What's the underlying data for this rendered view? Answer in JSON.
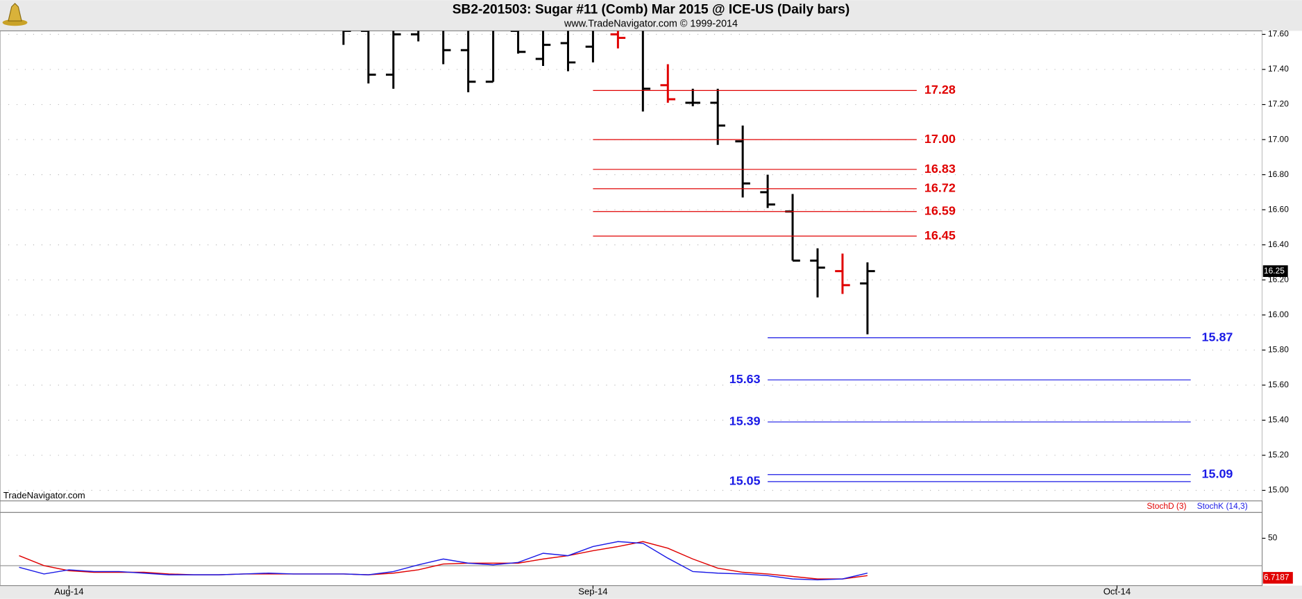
{
  "header": {
    "title": "SB2-201503:  Sugar #11 (Comb) Mar 2015 @ ICE-US  (Daily bars)",
    "subtitle": "www.TradeNavigator.com © 1999-2014"
  },
  "watermark": "TradeNavigator.com",
  "chart_data": [
    {
      "type": "ohlc",
      "categories": [
        null,
        null,
        "Aug-14",
        null,
        null,
        null,
        null,
        null,
        null,
        null,
        null,
        null,
        null,
        null,
        null,
        null,
        null,
        null,
        null,
        null,
        null,
        null,
        null,
        "Sep-14",
        null,
        null,
        null,
        null,
        null,
        null,
        null,
        null,
        null,
        null,
        null,
        null,
        null,
        null,
        null,
        null,
        null,
        null,
        null,
        null,
        "Oct-14",
        null,
        null,
        null,
        null,
        null
      ],
      "open": [
        null,
        null,
        null,
        null,
        null,
        null,
        null,
        null,
        null,
        null,
        null,
        null,
        null,
        17.66,
        17.62,
        17.37,
        17.6,
        17.64,
        17.51,
        17.33,
        17.62,
        17.46,
        17.55,
        17.53,
        17.6,
        17.64,
        17.31,
        17.21,
        17.21,
        16.99,
        16.7,
        16.59,
        16.31,
        16.25,
        16.18,
        null,
        null,
        null,
        null,
        null,
        null,
        null,
        null,
        null,
        null,
        null,
        null,
        null,
        null,
        null
      ],
      "high": [
        null,
        null,
        null,
        null,
        null,
        null,
        null,
        null,
        null,
        null,
        null,
        null,
        null,
        17.7,
        17.7,
        17.68,
        17.66,
        17.68,
        17.65,
        17.66,
        17.66,
        17.65,
        17.64,
        17.66,
        17.64,
        17.66,
        17.43,
        17.29,
        17.29,
        17.08,
        16.8,
        16.69,
        16.38,
        16.35,
        16.3,
        null,
        null,
        null,
        null,
        null,
        null,
        null,
        null,
        null,
        null,
        null,
        null,
        null,
        null,
        null
      ],
      "low": [
        null,
        null,
        null,
        null,
        null,
        null,
        null,
        null,
        null,
        null,
        null,
        null,
        null,
        17.54,
        17.32,
        17.29,
        17.56,
        17.43,
        17.27,
        17.33,
        17.49,
        17.42,
        17.39,
        17.44,
        17.52,
        17.16,
        17.21,
        17.19,
        16.97,
        16.67,
        16.61,
        16.31,
        16.1,
        16.12,
        15.89,
        null,
        null,
        null,
        null,
        null,
        null,
        null,
        null,
        null,
        null,
        null,
        null,
        null,
        null,
        null
      ],
      "close": [
        null,
        null,
        null,
        null,
        null,
        null,
        null,
        null,
        null,
        null,
        null,
        null,
        null,
        17.62,
        17.37,
        17.6,
        17.63,
        17.51,
        17.33,
        17.64,
        17.5,
        17.54,
        17.44,
        17.63,
        17.58,
        17.29,
        17.23,
        17.21,
        17.08,
        16.75,
        16.63,
        16.31,
        16.27,
        16.17,
        16.25,
        null,
        null,
        null,
        null,
        null,
        null,
        null,
        null,
        null,
        null,
        null,
        null,
        null,
        null,
        null
      ],
      "colors": [
        null,
        null,
        null,
        null,
        null,
        null,
        null,
        null,
        null,
        null,
        null,
        null,
        null,
        "#000000",
        "#000000",
        "#000000",
        "#000000",
        "#000000",
        "#000000",
        "#000000",
        "#000000",
        "#000000",
        "#000000",
        "#000000",
        "#e00000",
        "#000000",
        "#e00000",
        "#000000",
        "#000000",
        "#000000",
        "#000000",
        "#000000",
        "#000000",
        "#e00000",
        "#000000",
        null,
        null,
        null,
        null,
        null,
        null,
        null,
        null,
        null,
        null,
        null,
        null,
        null,
        null,
        null
      ],
      "ylim": [
        14.94,
        17.62
      ],
      "yticks": [
        {
          "value": 15.0,
          "label": "15.00"
        },
        {
          "value": 15.2,
          "label": "15.20"
        },
        {
          "value": 15.4,
          "label": "15.40"
        },
        {
          "value": 15.6,
          "label": "15.60"
        },
        {
          "value": 15.8,
          "label": "15.80"
        },
        {
          "value": 16.0,
          "label": "16.00"
        },
        {
          "value": 16.2,
          "label": "16.20"
        },
        {
          "value": 16.4,
          "label": "16.40"
        },
        {
          "value": 16.6,
          "label": "16.60"
        },
        {
          "value": 16.8,
          "label": "16.80"
        },
        {
          "value": 17.0,
          "label": "17.00"
        },
        {
          "value": 17.2,
          "label": "17.20"
        },
        {
          "value": 17.4,
          "label": "17.40"
        },
        {
          "value": 17.6,
          "label": "17.60"
        }
      ],
      "grid": true,
      "last_price": 16.25,
      "red_levels": {
        "color": "#e00000",
        "values": [
          17.28,
          17.0,
          16.83,
          16.72,
          16.59,
          16.45
        ],
        "value_labels": [
          "17.28",
          "17.00",
          "16.83",
          "16.72",
          "16.59",
          "16.45"
        ]
      },
      "blue_levels": {
        "color": "#1a1ae6",
        "values": [
          15.87,
          15.63,
          15.39,
          15.09,
          15.05
        ],
        "value_labels": [
          "15.87",
          "15.63",
          "15.39",
          "15.09",
          "15.05"
        ],
        "label_sides": [
          "right",
          "left",
          "left",
          "right",
          "left"
        ]
      }
    },
    {
      "type": "line",
      "series": [
        {
          "name": "StochD (3)",
          "color": "#e00000",
          "values": [
            30.9,
            20,
            14.5,
            12.7,
            12.7,
            12.7,
            10.9,
            10,
            10,
            10.9,
            10.9,
            10.9,
            10.9,
            10.9,
            10,
            11.8,
            15.5,
            21.8,
            22.7,
            22.7,
            22.7,
            27.3,
            30.9,
            36.4,
            40.9,
            46.4,
            39.1,
            27.3,
            17.3,
            12.7,
            10.9,
            8.2,
            5.5,
            5.5,
            9.1
          ]
        },
        {
          "name": "StochK (14,3)",
          "color": "#1a1ae6",
          "values": [
            18.2,
            10.9,
            15.5,
            13.6,
            13.6,
            11.8,
            10,
            10,
            10,
            10.9,
            11.8,
            10.9,
            10.9,
            10.9,
            10,
            13.6,
            20.9,
            27.3,
            22.7,
            20.9,
            23.6,
            33.6,
            30.9,
            40.9,
            46.4,
            44.5,
            28.2,
            13.6,
            11.8,
            10.9,
            9.1,
            5.5,
            4.5,
            5.5,
            11.8
          ]
        }
      ],
      "ylim": [
        -1.8,
        78.2
      ],
      "yticks": [
        50
      ],
      "ref_level": 20,
      "last_value": 6.7187
    }
  ]
}
